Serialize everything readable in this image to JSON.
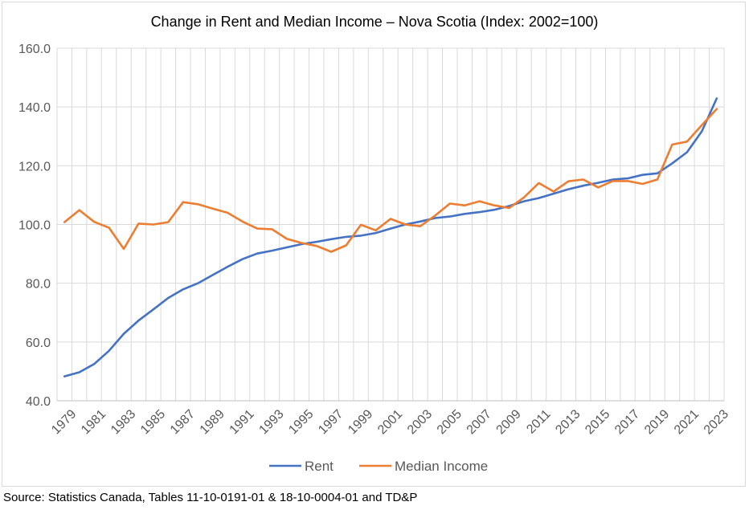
{
  "chart_data": {
    "type": "line",
    "title": "Change in Rent and Median Income – Nova Scotia (Index: 2002=100)",
    "xlabel": "",
    "ylabel": "",
    "ylim": [
      40,
      160
    ],
    "y_ticks": [
      "160.0",
      "140.0",
      "120.0",
      "100.0",
      "80.0",
      "60.0",
      "40.0"
    ],
    "x_tick_labels": [
      "1979",
      "1981",
      "1983",
      "1985",
      "1987",
      "1989",
      "1991",
      "1993",
      "1995",
      "1997",
      "1999",
      "2001",
      "2003",
      "2005",
      "2007",
      "2009",
      "2011",
      "2013",
      "2015",
      "2017",
      "2019",
      "2021",
      "2023"
    ],
    "grid": "vertical-and-horizontal",
    "legend_position": "bottom",
    "x": [
      1979,
      1980,
      1981,
      1982,
      1983,
      1984,
      1985,
      1986,
      1987,
      1988,
      1989,
      1990,
      1991,
      1992,
      1993,
      1994,
      1995,
      1996,
      1997,
      1998,
      1999,
      2000,
      2001,
      2002,
      2003,
      2004,
      2005,
      2006,
      2007,
      2008,
      2009,
      2010,
      2011,
      2012,
      2013,
      2014,
      2015,
      2016,
      2017,
      2018,
      2019,
      2020,
      2021,
      2022,
      2023
    ],
    "series": [
      {
        "name": "Rent",
        "color": "#4472c4",
        "values": [
          48.3,
          49.7,
          52.5,
          57.0,
          62.8,
          67.3,
          71.1,
          75.0,
          77.9,
          80.0,
          82.8,
          85.6,
          88.2,
          90.1,
          91.1,
          92.2,
          93.3,
          94.1,
          95.0,
          95.8,
          96.2,
          97.1,
          98.6,
          100.0,
          101.0,
          102.2,
          102.7,
          103.6,
          104.2,
          105.0,
          106.3,
          107.9,
          109.0,
          110.5,
          112.0,
          113.2,
          114.2,
          115.3,
          115.7,
          116.9,
          117.4,
          120.8,
          124.6,
          131.7,
          142.9
        ]
      },
      {
        "name": "Median Income",
        "color": "#ed7d31",
        "values": [
          100.8,
          104.9,
          100.9,
          98.9,
          91.7,
          100.3,
          100.0,
          100.8,
          107.6,
          106.9,
          105.4,
          104.0,
          101.0,
          98.6,
          98.4,
          95.1,
          93.7,
          92.7,
          90.7,
          92.9,
          99.9,
          98.0,
          101.9,
          100.0,
          99.4,
          103.0,
          107.1,
          106.5,
          107.9,
          106.5,
          105.6,
          109.2,
          114.1,
          111.2,
          114.7,
          115.3,
          112.6,
          114.8,
          114.8,
          113.8,
          115.3,
          127.2,
          128.2,
          133.8,
          139.3
        ]
      }
    ]
  },
  "source_note": "Source: Statistics Canada, Tables 11-10-0191-01 & 18-10-0004-01 and TD&P"
}
